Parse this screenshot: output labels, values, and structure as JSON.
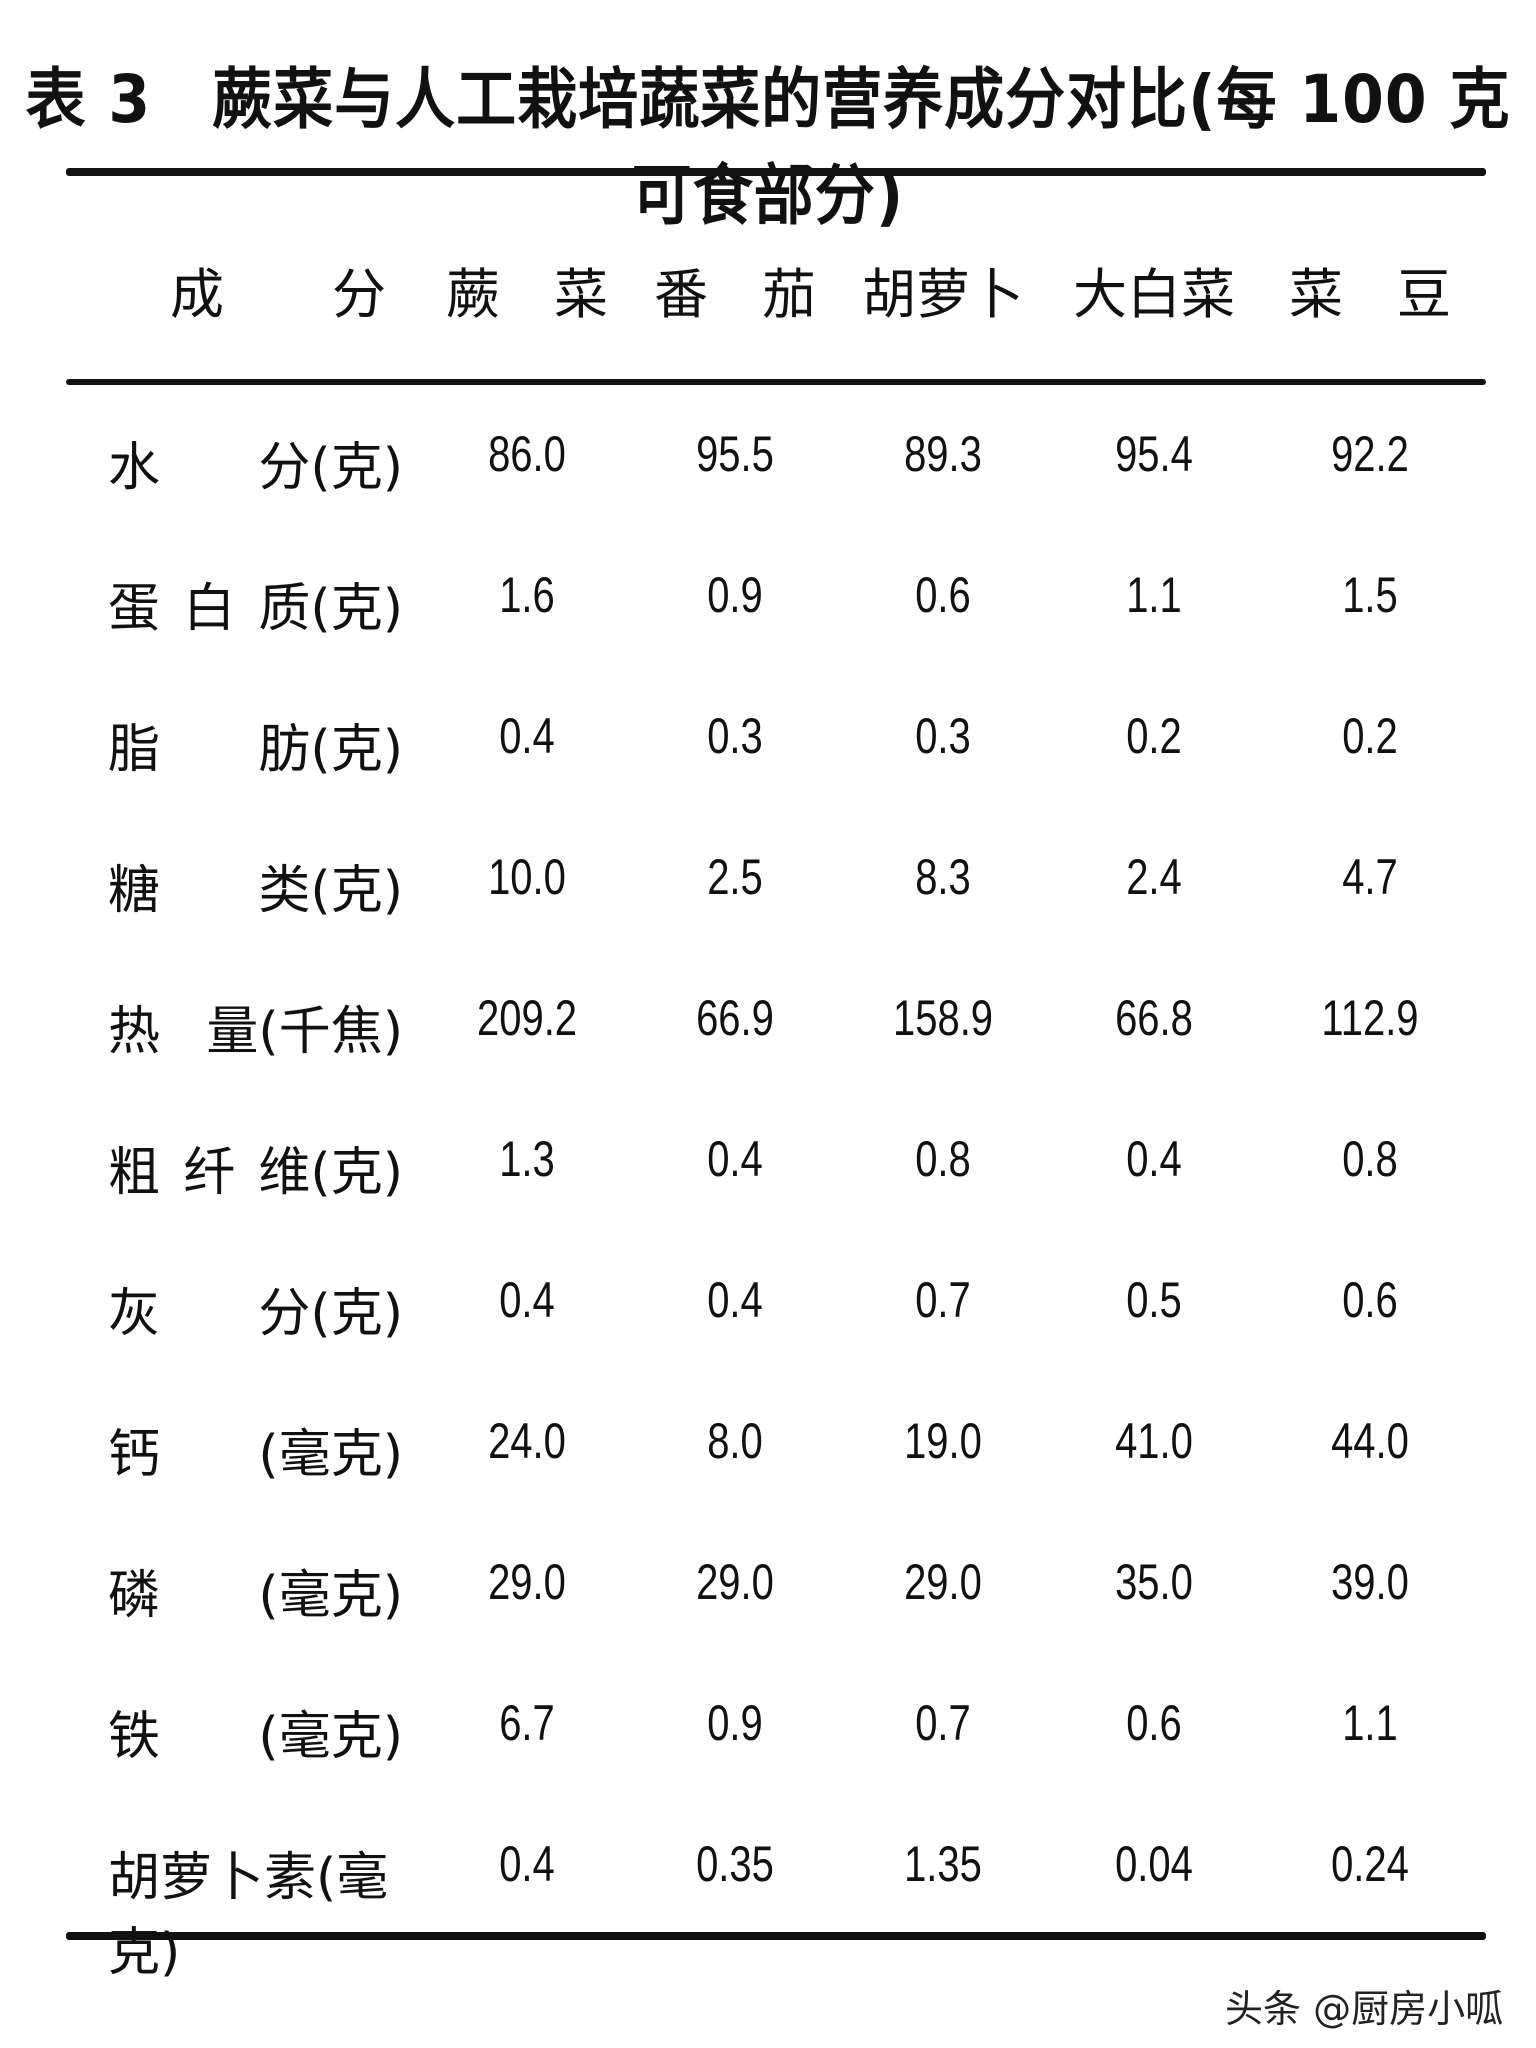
{
  "title": "表 3　蕨菜与人工栽培蔬菜的营养成分对比(每 100 克可食部分)",
  "header": {
    "label": "成　　分",
    "columns": [
      "蕨　菜",
      "番　茄",
      "胡萝卜",
      "大白菜",
      "菜　豆"
    ]
  },
  "rows": [
    {
      "label": [
        "水",
        "分(克)"
      ],
      "values": [
        "86.0",
        "95.5",
        "89.3",
        "95.4",
        "92.2"
      ]
    },
    {
      "label": [
        "蛋",
        "白",
        "质(克)"
      ],
      "values": [
        "1.6",
        "0.9",
        "0.6",
        "1.1",
        "1.5"
      ]
    },
    {
      "label": [
        "脂",
        "肪(克)"
      ],
      "values": [
        "0.4",
        "0.3",
        "0.3",
        "0.2",
        "0.2"
      ]
    },
    {
      "label": [
        "糖",
        "类(克)"
      ],
      "values": [
        "10.0",
        "2.5",
        "8.3",
        "2.4",
        "4.7"
      ]
    },
    {
      "label": [
        "热",
        "量(千焦)"
      ],
      "values": [
        "209.2",
        "66.9",
        "158.9",
        "66.8",
        "112.9"
      ]
    },
    {
      "label": [
        "粗",
        "纤",
        "维(克)"
      ],
      "values": [
        "1.3",
        "0.4",
        "0.8",
        "0.4",
        "0.8"
      ]
    },
    {
      "label": [
        "灰",
        "分(克)"
      ],
      "values": [
        "0.4",
        "0.4",
        "0.7",
        "0.5",
        "0.6"
      ]
    },
    {
      "label": [
        "钙",
        "(毫克)"
      ],
      "values": [
        "24.0",
        "8.0",
        "19.0",
        "41.0",
        "44.0"
      ]
    },
    {
      "label": [
        "磷",
        "(毫克)"
      ],
      "values": [
        "29.0",
        "29.0",
        "29.0",
        "35.0",
        "39.0"
      ]
    },
    {
      "label": [
        "铁",
        "(毫克)"
      ],
      "values": [
        "6.7",
        "0.9",
        "0.7",
        "0.6",
        "1.1"
      ]
    },
    {
      "label": [
        "胡萝卜素(毫克)"
      ],
      "values": [
        "0.4",
        "0.35",
        "1.35",
        "0.04",
        "0.24"
      ]
    }
  ],
  "watermark": "头条 @厨房小呱"
}
